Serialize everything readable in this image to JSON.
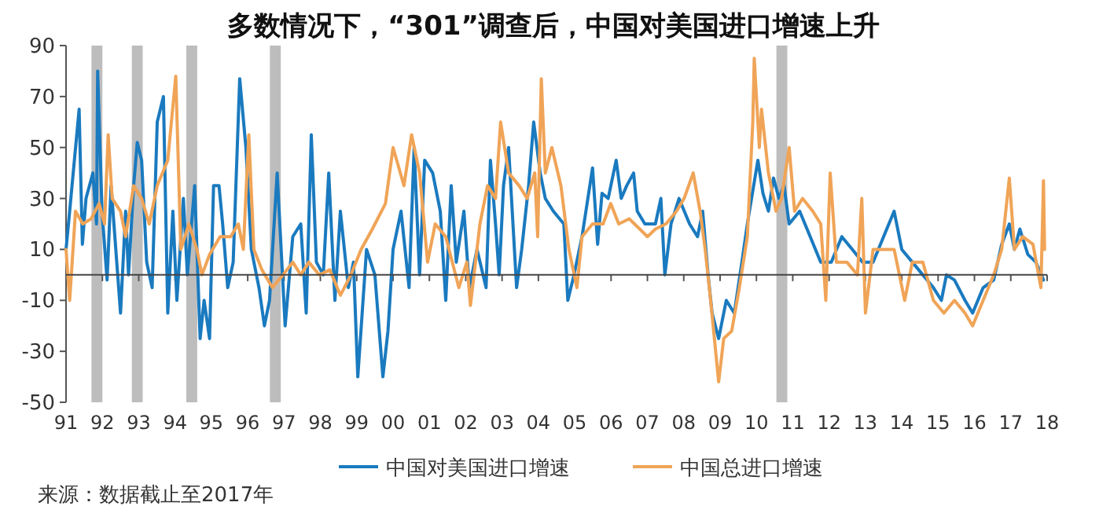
{
  "chart_data": {
    "type": "line",
    "title": "多数情况下，“301”调查后，中国对美国进口增速上升",
    "xlim": [
      1991,
      2018
    ],
    "xticks": [
      {
        "value": 1991,
        "label": "91"
      },
      {
        "value": 1992,
        "label": "92"
      },
      {
        "value": 1993,
        "label": "93"
      },
      {
        "value": 1994,
        "label": "94"
      },
      {
        "value": 1995,
        "label": "95"
      },
      {
        "value": 1996,
        "label": "96"
      },
      {
        "value": 1997,
        "label": "97"
      },
      {
        "value": 1998,
        "label": "98"
      },
      {
        "value": 1999,
        "label": "99"
      },
      {
        "value": 2000,
        "label": "00"
      },
      {
        "value": 2001,
        "label": "01"
      },
      {
        "value": 2002,
        "label": "02"
      },
      {
        "value": 2003,
        "label": "03"
      },
      {
        "value": 2004,
        "label": "04"
      },
      {
        "value": 2005,
        "label": "05"
      },
      {
        "value": 2006,
        "label": "06"
      },
      {
        "value": 2007,
        "label": "07"
      },
      {
        "value": 2008,
        "label": "08"
      },
      {
        "value": 2009,
        "label": "09"
      },
      {
        "value": 2010,
        "label": "10"
      },
      {
        "value": 2011,
        "label": "11"
      },
      {
        "value": 2012,
        "label": "12"
      },
      {
        "value": 2013,
        "label": "13"
      },
      {
        "value": 2014,
        "label": "14"
      },
      {
        "value": 2015,
        "label": "15"
      },
      {
        "value": 2016,
        "label": "16"
      },
      {
        "value": 2017,
        "label": "17"
      },
      {
        "value": 2018,
        "label": "18"
      }
    ],
    "ylim": [
      -50,
      90
    ],
    "yticks": [
      -50,
      -30,
      -10,
      10,
      30,
      50,
      70,
      90
    ],
    "grid": false,
    "legend": "bottom",
    "bands": [
      {
        "axis": "x",
        "from": 1991.7,
        "to": 1992.0,
        "color": "#bdbdbd"
      },
      {
        "axis": "x",
        "from": 1992.81,
        "to": 1993.11,
        "color": "#bdbdbd"
      },
      {
        "axis": "x",
        "from": 1994.31,
        "to": 1994.61,
        "color": "#bdbdbd"
      },
      {
        "axis": "x",
        "from": 1996.61,
        "to": 1996.91,
        "color": "#bdbdbd"
      },
      {
        "axis": "x",
        "from": 2010.55,
        "to": 2010.85,
        "color": "#bdbdbd"
      }
    ],
    "series": [
      {
        "name": "中国对美国进口增速",
        "color": "#1a7abf",
        "x": [
          1991.0,
          1991.1,
          1991.36,
          1991.45,
          1991.55,
          1991.74,
          1991.84,
          1991.87,
          1991.99,
          1992.13,
          1992.24,
          1992.38,
          1992.5,
          1992.64,
          1992.72,
          1992.86,
          1992.96,
          1993.08,
          1993.22,
          1993.37,
          1993.51,
          1993.68,
          1993.8,
          1993.94,
          1994.05,
          1994.23,
          1994.34,
          1994.54,
          1994.69,
          1994.8,
          1994.95,
          1995.06,
          1995.21,
          1995.31,
          1995.45,
          1995.6,
          1995.78,
          1995.95,
          1996.1,
          1996.31,
          1996.46,
          1996.6,
          1996.81,
          1997.03,
          1997.24,
          1997.46,
          1997.61,
          1997.75,
          1997.89,
          1998.08,
          1998.23,
          1998.4,
          1998.55,
          1998.77,
          1998.91,
          1999.03,
          1999.27,
          1999.5,
          1999.72,
          1999.86,
          2000.0,
          2000.22,
          2000.44,
          2000.58,
          2000.73,
          2000.87,
          2001.09,
          2001.3,
          2001.45,
          2001.6,
          2001.74,
          2001.95,
          2002.1,
          2002.31,
          2002.56,
          2002.68,
          2002.82,
          2002.92,
          2003.04,
          2003.18,
          2003.4,
          2003.54,
          2003.73,
          2003.87,
          2004.05,
          2004.19,
          2004.41,
          2004.7,
          2004.81,
          2004.98,
          2005.2,
          2005.49,
          2005.63,
          2005.75,
          2005.92,
          2006.14,
          2006.28,
          2006.43,
          2006.62,
          2006.72,
          2006.93,
          2007.22,
          2007.37,
          2007.48,
          2007.65,
          2007.87,
          2008.16,
          2008.38,
          2008.52,
          2008.67,
          2008.78,
          2008.96,
          2009.17,
          2009.39,
          2009.6,
          2009.75,
          2010.04,
          2010.18,
          2010.33,
          2010.47,
          2010.62,
          2010.76,
          2010.9,
          2011.19,
          2011.48,
          2011.77,
          2012.06,
          2012.35,
          2012.64,
          2012.92,
          2013.21,
          2013.5,
          2013.79,
          2014.0,
          2014.29,
          2014.58,
          2014.87,
          2015.09,
          2015.23,
          2015.45,
          2015.74,
          2015.95,
          2016.24,
          2016.53,
          2016.75,
          2016.96,
          2017.1,
          2017.25,
          2017.47,
          2017.69,
          2017.9
        ],
        "values": [
          10,
          25,
          65,
          12,
          30,
          40,
          20,
          80,
          25,
          -2,
          35,
          8,
          -15,
          25,
          0,
          35,
          52,
          45,
          5,
          -5,
          60,
          70,
          -15,
          25,
          -10,
          30,
          0,
          35,
          -25,
          -10,
          -25,
          35,
          35,
          20,
          -5,
          5,
          77,
          50,
          10,
          -5,
          -20,
          -10,
          40,
          -20,
          15,
          20,
          -15,
          55,
          5,
          0,
          40,
          -10,
          25,
          -5,
          5,
          -40,
          10,
          0,
          -40,
          -22,
          10,
          25,
          -5,
          50,
          0,
          45,
          40,
          25,
          -10,
          35,
          5,
          25,
          -5,
          10,
          -5,
          45,
          20,
          0,
          35,
          50,
          -5,
          10,
          35,
          60,
          40,
          30,
          25,
          20,
          -10,
          0,
          15,
          42,
          12,
          32,
          30,
          45,
          30,
          35,
          40,
          25,
          20,
          20,
          30,
          0,
          20,
          30,
          20,
          15,
          25,
          0,
          -15,
          -25,
          -10,
          -15,
          5,
          20,
          45,
          32,
          25,
          38,
          30,
          35,
          20,
          25,
          15,
          5,
          5,
          15,
          10,
          5,
          5,
          15,
          25,
          10,
          5,
          0,
          -5,
          -10,
          0,
          -2,
          -10,
          -15,
          -5,
          -2,
          12,
          20,
          10,
          18,
          8,
          5,
          -2
        ]
      },
      {
        "name": "中国总进口增速",
        "color": "#f0a457",
        "x": [
          1991.0,
          1991.1,
          1991.26,
          1991.46,
          1991.69,
          1991.91,
          1992.06,
          1992.16,
          1992.27,
          1992.5,
          1992.64,
          1992.86,
          1993.08,
          1993.29,
          1993.51,
          1993.8,
          1994.02,
          1994.16,
          1994.38,
          1994.6,
          1994.74,
          1994.95,
          1995.24,
          1995.53,
          1995.74,
          1995.88,
          1996.03,
          1996.17,
          1996.39,
          1996.68,
          1996.97,
          1997.24,
          1997.46,
          1997.68,
          1997.97,
          1998.26,
          1998.55,
          1998.84,
          1999.12,
          1999.43,
          1999.79,
          2000.0,
          2000.3,
          2000.51,
          2000.73,
          2000.95,
          2001.16,
          2001.45,
          2001.81,
          2002.03,
          2002.13,
          2002.39,
          2002.6,
          2002.82,
          2002.96,
          2003.18,
          2003.47,
          2003.69,
          2003.9,
          2003.98,
          2004.08,
          2004.19,
          2004.37,
          2004.62,
          2004.84,
          2005.06,
          2005.2,
          2005.49,
          2005.78,
          2005.99,
          2006.21,
          2006.5,
          2006.79,
          2007.0,
          2007.22,
          2007.51,
          2007.8,
          2008.01,
          2008.26,
          2008.45,
          2008.59,
          2008.74,
          2008.96,
          2009.1,
          2009.32,
          2009.53,
          2009.75,
          2009.9,
          2009.94,
          2010.08,
          2010.14,
          2010.33,
          2010.54,
          2010.69,
          2010.9,
          2011.05,
          2011.27,
          2011.55,
          2011.77,
          2011.91,
          2012.03,
          2012.2,
          2012.49,
          2012.78,
          2012.9,
          2013.0,
          2013.21,
          2013.5,
          2013.79,
          2014.08,
          2014.29,
          2014.58,
          2014.87,
          2015.16,
          2015.45,
          2015.74,
          2015.95,
          2016.24,
          2016.53,
          2016.75,
          2016.96,
          2017.1,
          2017.33,
          2017.61,
          2017.83,
          2017.9,
          2017.93
        ],
        "values": [
          10,
          -10,
          25,
          20,
          22,
          28,
          20,
          55,
          30,
          25,
          15,
          35,
          30,
          20,
          35,
          45,
          78,
          10,
          20,
          10,
          0,
          8,
          15,
          15,
          20,
          10,
          55,
          10,
          2,
          -5,
          0,
          5,
          0,
          5,
          0,
          2,
          -8,
          0,
          10,
          18,
          28,
          50,
          35,
          55,
          40,
          5,
          20,
          15,
          -5,
          5,
          -12,
          20,
          35,
          30,
          60,
          40,
          35,
          30,
          40,
          15,
          77,
          40,
          50,
          35,
          10,
          -5,
          15,
          20,
          20,
          28,
          20,
          22,
          18,
          15,
          18,
          20,
          25,
          30,
          40,
          25,
          10,
          -10,
          -42,
          -25,
          -22,
          -5,
          15,
          60,
          85,
          50,
          65,
          40,
          25,
          30,
          50,
          25,
          30,
          25,
          20,
          -10,
          40,
          5,
          5,
          0,
          30,
          -15,
          10,
          10,
          10,
          -10,
          5,
          5,
          -10,
          -15,
          -10,
          -15,
          -20,
          -10,
          0,
          10,
          38,
          10,
          15,
          12,
          -5,
          37,
          10
        ]
      }
    ],
    "annotations": [
      "来源：数据截止至2017年"
    ]
  }
}
